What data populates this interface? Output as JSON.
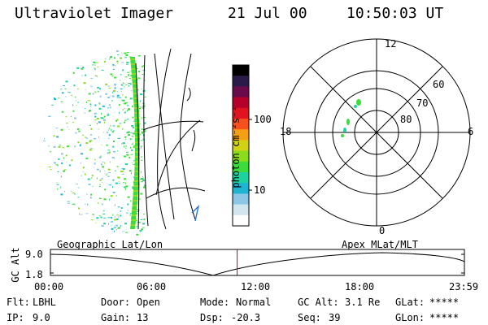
{
  "header": {
    "instrument": "Ultraviolet Imager",
    "date": "21 Jul 00",
    "time": "10:50:03 UT"
  },
  "colorbar": {
    "unit_label": "photon cm⁻²s⁻¹",
    "ticks": [
      "100",
      "10"
    ],
    "colors": [
      "#000000",
      "#2a1a4a",
      "#6a0a4a",
      "#b4002a",
      "#e0141e",
      "#f5501e",
      "#f5a014",
      "#d2d214",
      "#8cdc1e",
      "#3cdc3c",
      "#1ed2a0",
      "#1eb4d2",
      "#8cc8e6",
      "#d2e6f0",
      "#ffffff"
    ]
  },
  "polar_plot": {
    "mlt_labels": {
      "top": "12",
      "left": "18",
      "right": "6",
      "bottom": "0"
    },
    "lat_labels": [
      "60",
      "70",
      "80"
    ]
  },
  "timeline": {
    "left_title": "Geographic Lat/Lon",
    "right_title": "Apex MLat/MLT",
    "ylabel": "GC Alt",
    "y_ticks": [
      "9.0",
      "1.8"
    ],
    "x_ticks": [
      "00:00",
      "06:00",
      "12:00",
      "18:00",
      "23:59"
    ],
    "current_time_fraction": 0.451,
    "marker_color": "#cc0000"
  },
  "status": {
    "row1": [
      {
        "label": "Flt:",
        "value": "LBHL"
      },
      {
        "label": "Door:",
        "value": "Open"
      },
      {
        "label": "Mode:",
        "value": "Normal"
      },
      {
        "label": "GC Alt:",
        "value": "3.1 Re"
      },
      {
        "label": "GLat:",
        "value": "*****"
      }
    ],
    "row2": [
      {
        "label": "IP:",
        "value": "9.0"
      },
      {
        "label": "Gain:",
        "value": "13"
      },
      {
        "label": "Dsp:",
        "value": "-20.3"
      },
      {
        "label": "Seq:",
        "value": "39"
      },
      {
        "label": "GLon:",
        "value": "*****"
      }
    ]
  }
}
